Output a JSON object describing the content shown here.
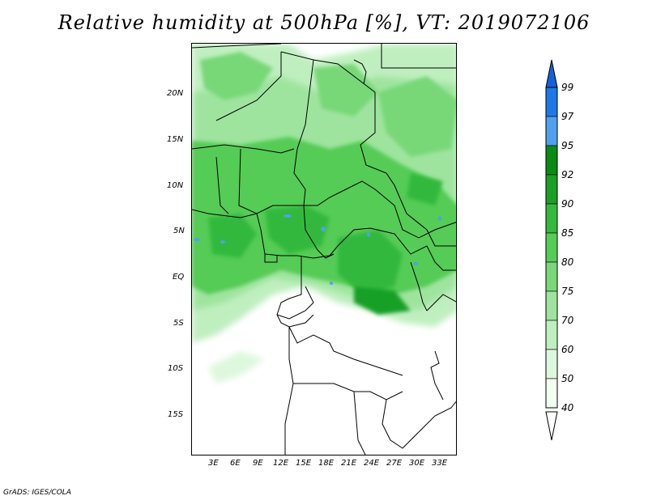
{
  "title": "Relative humidity at 500hPa [%], VT: 2019072106",
  "footer": "GrADS: IGES/COLA",
  "lat_labels": [
    "20N",
    "15N",
    "10N",
    "5N",
    "EQ",
    "5S",
    "10S",
    "15S"
  ],
  "lon_labels": [
    "3E",
    "6E",
    "9E",
    "12E",
    "15E",
    "18E",
    "21E",
    "24E",
    "27E",
    "30E",
    "33E"
  ],
  "colorbar": {
    "levels": [
      "99",
      "97",
      "95",
      "92",
      "90",
      "85",
      "80",
      "75",
      "70",
      "60",
      "50",
      "40"
    ],
    "colors": [
      "#1560d8",
      "#1e78e8",
      "#50a0f0",
      "#0a8c14",
      "#19a025",
      "#33b93c",
      "#55cc55",
      "#78d878",
      "#9ee49e",
      "#bfefbf",
      "#ddf8dd",
      "#f0fff0"
    ]
  },
  "map_colors": {
    "land": "#ffffff",
    "border": "#000000",
    "humid_high": "#2a9c2a",
    "humid_mid": "#55cc55",
    "humid_low": "#9ee49e",
    "saturated": "#50a0f0"
  }
}
